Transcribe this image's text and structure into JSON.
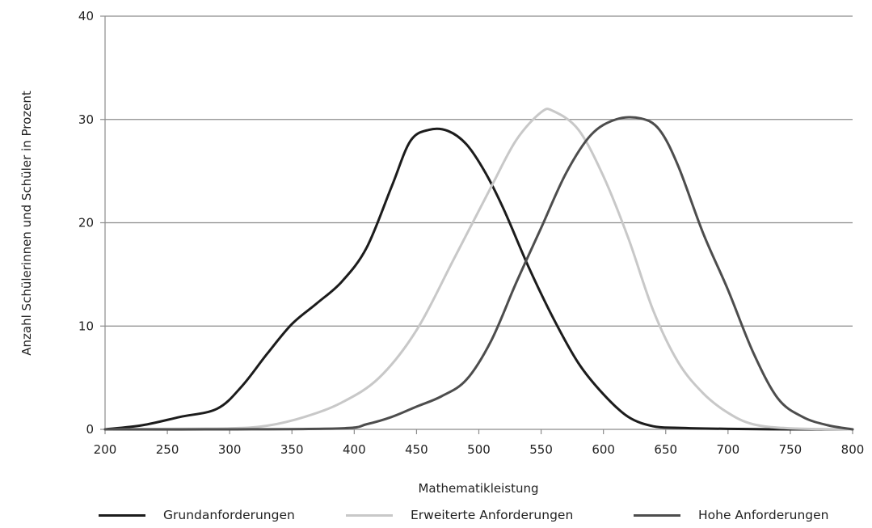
{
  "chart_data": {
    "type": "line",
    "title": "",
    "xlabel": "Mathematikleistung",
    "ylabel": "Anzahl Schülerinnen und Schüler in Prozent",
    "xlim": [
      200,
      800
    ],
    "ylim": [
      0,
      40
    ],
    "xticks": [
      200,
      250,
      300,
      350,
      400,
      450,
      500,
      550,
      600,
      650,
      700,
      750,
      800
    ],
    "yticks": [
      0,
      10,
      20,
      30,
      40
    ],
    "grid": "horizontal",
    "legend_position": "bottom",
    "series": [
      {
        "name": "Grundanforderungen",
        "color": "#1c1c1c",
        "x": [
          200,
          230,
          260,
          290,
          310,
          330,
          350,
          370,
          390,
          410,
          430,
          445,
          460,
          475,
          490,
          505,
          520,
          540,
          560,
          580,
          600,
          620,
          640,
          660,
          700,
          750,
          800
        ],
        "y": [
          0,
          0.4,
          1.2,
          2,
          4.2,
          7.3,
          10.2,
          12.2,
          14.3,
          17.6,
          23.5,
          27.9,
          29,
          28.9,
          27.6,
          24.9,
          21.3,
          15.7,
          10.7,
          6.4,
          3.4,
          1.2,
          0.3,
          0.15,
          0.05,
          0,
          0
        ]
      },
      {
        "name": "Erweiterte Anforderungen",
        "color": "#c8c8c8",
        "x": [
          200,
          250,
          300,
          330,
          360,
          390,
          420,
          450,
          480,
          510,
          530,
          550,
          560,
          580,
          600,
          620,
          640,
          660,
          680,
          700,
          720,
          750,
          800
        ],
        "y": [
          0,
          0.05,
          0.1,
          0.35,
          1.2,
          2.6,
          5,
          9.6,
          16.5,
          23.5,
          28,
          30.7,
          30.8,
          29,
          24.5,
          18.5,
          11.5,
          6.5,
          3.5,
          1.6,
          0.5,
          0.1,
          0
        ]
      },
      {
        "name": "Hohe Anforderungen",
        "color": "#4d4d4d",
        "x": [
          200,
          300,
          390,
          410,
          430,
          450,
          470,
          490,
          510,
          530,
          550,
          570,
          590,
          610,
          630,
          645,
          660,
          680,
          700,
          720,
          740,
          760,
          780,
          800
        ],
        "y": [
          0,
          0,
          0.1,
          0.5,
          1.2,
          2.2,
          3.2,
          4.8,
          8.6,
          14.2,
          19.5,
          24.8,
          28.5,
          30,
          30.1,
          29,
          25.5,
          19,
          13.5,
          7.5,
          3,
          1.2,
          0.4,
          0
        ]
      }
    ]
  }
}
